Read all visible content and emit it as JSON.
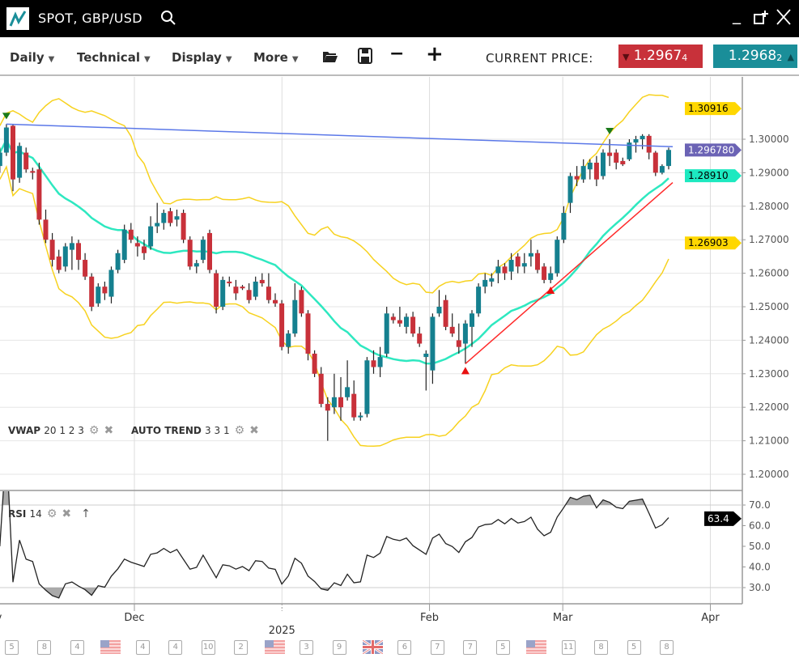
{
  "window": {
    "title": "SPOT, GBP/USD"
  },
  "toolbar": {
    "menus": [
      "Daily",
      "Technical",
      "Display",
      "More"
    ],
    "current_price_label": "CURRENT PRICE:",
    "bid": {
      "main": "1.2967",
      "pip": "4",
      "direction": "down",
      "color": "#c8313a"
    },
    "ask": {
      "main": "1.2968",
      "pip": "2",
      "direction": "up",
      "color": "#1a8e99"
    }
  },
  "indicators": {
    "vwap": {
      "name": "VWAP",
      "params": "20 1 2 3"
    },
    "autotrend": {
      "name": "AUTO TREND",
      "params": "3 3 1"
    },
    "rsi": {
      "name": "RSI",
      "params": "14"
    }
  },
  "colors": {
    "up": "#15808f",
    "down": "#c8313a",
    "band": "#f7d21f",
    "mid": "#2ee8c0",
    "resistance": "#5b78e8",
    "support": "#ff2a2a"
  },
  "chart_data": {
    "type": "candlestick",
    "price_axis": {
      "ticks": [
        "1.20000",
        "1.21000",
        "1.22000",
        "1.23000",
        "1.24000",
        "1.25000",
        "1.26000",
        "1.27000",
        "1.28000",
        "1.29000",
        "1.30000"
      ],
      "range": [
        1.195,
        1.314
      ]
    },
    "time_axis": {
      "ticks": [
        {
          "label": "Nov",
          "date": "2024-11-01"
        },
        {
          "label": "Dec",
          "date": "2024-12-01"
        },
        {
          "label": "2025",
          "date": "2025-01-01"
        },
        {
          "label": "Feb",
          "date": "2025-02-01"
        },
        {
          "label": "Mar",
          "date": "2025-03-01"
        },
        {
          "label": "Apr",
          "date": "2025-04-01"
        }
      ]
    },
    "price_tags": [
      {
        "value": "1.30916",
        "color": "#ffd700",
        "text": "#000"
      },
      {
        "value": "1.296780",
        "color": "#6b63b5",
        "text": "#fff"
      },
      {
        "value": "1.28910",
        "color": "#1de9c0",
        "text": "#000"
      },
      {
        "value": "1.26903",
        "color": "#ffd700",
        "text": "#000"
      }
    ],
    "rsi_axis": {
      "ticks": [
        "70.0",
        "60.0",
        "50.0",
        "40.0",
        "30.0"
      ],
      "overbought": 70,
      "oversold": 30
    },
    "rsi_tag": "63.4",
    "trendlines": [
      {
        "type": "resistance",
        "from": [
          "2024-11-05",
          1.3045
        ],
        "to": [
          "2025-03-26",
          1.2978
        ],
        "extend_to_right": true
      },
      {
        "type": "support",
        "from": [
          "2025-02-11",
          1.233
        ],
        "to": [
          "2025-03-26",
          1.286
        ],
        "extend_to_right": true
      }
    ],
    "markers": [
      {
        "date": "2024-11-05",
        "price": 1.3045,
        "kind": "peak"
      },
      {
        "date": "2025-03-13",
        "price": 1.3,
        "kind": "peak"
      },
      {
        "date": "2025-02-11",
        "price": 1.233,
        "kind": "trough"
      },
      {
        "date": "2025-02-28",
        "price": 1.257,
        "kind": "trough"
      }
    ],
    "candles": [
      [
        "2024-11-04",
        1.292,
        1.2975,
        1.29,
        1.296
      ],
      [
        "2024-11-05",
        1.296,
        1.3045,
        1.295,
        1.3035
      ],
      [
        "2024-11-06",
        1.304,
        1.3045,
        1.2845,
        1.288
      ],
      [
        "2024-11-07",
        1.2885,
        1.299,
        1.287,
        1.298
      ],
      [
        "2024-11-08",
        1.296,
        1.2975,
        1.29,
        1.291
      ],
      [
        "2024-11-11",
        1.2905,
        1.2915,
        1.288,
        1.29
      ],
      [
        "2024-11-12",
        1.291,
        1.293,
        1.2745,
        1.276
      ],
      [
        "2024-11-13",
        1.276,
        1.279,
        1.269,
        1.27
      ],
      [
        "2024-11-14",
        1.27,
        1.272,
        1.262,
        1.264
      ],
      [
        "2024-11-15",
        1.265,
        1.267,
        1.26,
        1.261
      ],
      [
        "2024-11-18",
        1.262,
        1.269,
        1.2605,
        1.268
      ],
      [
        "2024-11-19",
        1.267,
        1.271,
        1.261,
        1.269
      ],
      [
        "2024-11-20",
        1.269,
        1.27,
        1.261,
        1.264
      ],
      [
        "2024-11-21",
        1.264,
        1.266,
        1.258,
        1.259
      ],
      [
        "2024-11-22",
        1.259,
        1.26,
        1.2487,
        1.25
      ],
      [
        "2024-11-25",
        1.251,
        1.257,
        1.25,
        1.256
      ],
      [
        "2024-11-26",
        1.256,
        1.2575,
        1.252,
        1.254
      ],
      [
        "2024-11-27",
        1.253,
        1.262,
        1.251,
        1.261
      ],
      [
        "2024-11-28",
        1.261,
        1.267,
        1.26,
        1.266
      ],
      [
        "2024-11-29",
        1.264,
        1.2745,
        1.263,
        1.273
      ],
      [
        "2024-12-02",
        1.273,
        1.275,
        1.269,
        1.27
      ],
      [
        "2024-12-03",
        1.269,
        1.271,
        1.265,
        1.268
      ],
      [
        "2024-12-04",
        1.268,
        1.27,
        1.264,
        1.266
      ],
      [
        "2024-12-05",
        1.268,
        1.277,
        1.267,
        1.274
      ],
      [
        "2024-12-06",
        1.274,
        1.281,
        1.272,
        1.275
      ],
      [
        "2024-12-09",
        1.275,
        1.279,
        1.273,
        1.278
      ],
      [
        "2024-12-10",
        1.2785,
        1.2795,
        1.274,
        1.275
      ],
      [
        "2024-12-11",
        1.276,
        1.279,
        1.274,
        1.277
      ],
      [
        "2024-12-12",
        1.278,
        1.279,
        1.269,
        1.27
      ],
      [
        "2024-12-13",
        1.27,
        1.271,
        1.261,
        1.262
      ],
      [
        "2024-12-16",
        1.262,
        1.264,
        1.26,
        1.263
      ],
      [
        "2024-12-17",
        1.264,
        1.271,
        1.263,
        1.27
      ],
      [
        "2024-12-18",
        1.272,
        1.273,
        1.26,
        1.261
      ],
      [
        "2024-12-19",
        1.26,
        1.261,
        1.248,
        1.25
      ],
      [
        "2024-12-20",
        1.25,
        1.259,
        1.249,
        1.258
      ],
      [
        "2024-12-23",
        1.2575,
        1.259,
        1.256,
        1.257
      ],
      [
        "2024-12-24",
        1.256,
        1.258,
        1.252,
        1.254
      ],
      [
        "2024-12-25",
        1.256,
        1.2565,
        1.255,
        1.2555
      ],
      [
        "2024-12-26",
        1.255,
        1.257,
        1.251,
        1.252
      ],
      [
        "2024-12-27",
        1.253,
        1.259,
        1.252,
        1.2575
      ],
      [
        "2024-12-30",
        1.258,
        1.26,
        1.256,
        1.257
      ],
      [
        "2024-12-31",
        1.256,
        1.26,
        1.251,
        1.252
      ],
      [
        "2025-01-01",
        1.252,
        1.254,
        1.25,
        1.251
      ],
      [
        "2025-01-02",
        1.251,
        1.252,
        1.237,
        1.238
      ],
      [
        "2025-01-03",
        1.238,
        1.243,
        1.236,
        1.242
      ],
      [
        "2025-01-06",
        1.242,
        1.257,
        1.241,
        1.252
      ],
      [
        "2025-01-07",
        1.255,
        1.256,
        1.247,
        1.248
      ],
      [
        "2025-01-08",
        1.248,
        1.249,
        1.234,
        1.236
      ],
      [
        "2025-01-09",
        1.236,
        1.237,
        1.229,
        1.23
      ],
      [
        "2025-01-10",
        1.23,
        1.232,
        1.22,
        1.221
      ],
      [
        "2025-01-13",
        1.221,
        1.223,
        1.21,
        1.219
      ],
      [
        "2025-01-14",
        1.22,
        1.23,
        1.218,
        1.223
      ],
      [
        "2025-01-15",
        1.223,
        1.229,
        1.216,
        1.22
      ],
      [
        "2025-01-16",
        1.223,
        1.234,
        1.222,
        1.226
      ],
      [
        "2025-01-17",
        1.224,
        1.228,
        1.216,
        1.217
      ],
      [
        "2025-01-20",
        1.217,
        1.2185,
        1.216,
        1.2175
      ],
      [
        "2025-01-21",
        1.218,
        1.235,
        1.217,
        1.234
      ],
      [
        "2025-01-22",
        1.234,
        1.237,
        1.23,
        1.232
      ],
      [
        "2025-01-23",
        1.232,
        1.238,
        1.229,
        1.235
      ],
      [
        "2025-01-24",
        1.236,
        1.25,
        1.235,
        1.248
      ],
      [
        "2025-01-27",
        1.247,
        1.248,
        1.245,
        1.246
      ],
      [
        "2025-01-28",
        1.246,
        1.25,
        1.244,
        1.245
      ],
      [
        "2025-01-29",
        1.244,
        1.248,
        1.242,
        1.247
      ],
      [
        "2025-01-30",
        1.247,
        1.2485,
        1.241,
        1.242
      ],
      [
        "2025-01-31",
        1.242,
        1.244,
        1.238,
        1.239
      ],
      [
        "2025-02-03",
        1.235,
        1.237,
        1.225,
        1.236
      ],
      [
        "2025-02-04",
        1.231,
        1.248,
        1.227,
        1.247
      ],
      [
        "2025-02-05",
        1.248,
        1.255,
        1.247,
        1.25
      ],
      [
        "2025-02-06",
        1.252,
        1.2535,
        1.243,
        1.244
      ],
      [
        "2025-02-07",
        1.244,
        1.248,
        1.241,
        1.242
      ],
      [
        "2025-02-10",
        1.24,
        1.245,
        1.236,
        1.238
      ],
      [
        "2025-02-11",
        1.239,
        1.246,
        1.233,
        1.245
      ],
      [
        "2025-02-12",
        1.244,
        1.249,
        1.238,
        1.248
      ],
      [
        "2025-02-13",
        1.248,
        1.257,
        1.247,
        1.256
      ],
      [
        "2025-02-14",
        1.256,
        1.26,
        1.254,
        1.258
      ],
      [
        "2025-02-17",
        1.2575,
        1.26,
        1.256,
        1.2585
      ],
      [
        "2025-02-18",
        1.26,
        1.264,
        1.257,
        1.262
      ],
      [
        "2025-02-19",
        1.262,
        1.263,
        1.258,
        1.26
      ],
      [
        "2025-02-20",
        1.2605,
        1.266,
        1.258,
        1.264
      ],
      [
        "2025-02-21",
        1.265,
        1.266,
        1.26,
        1.262
      ],
      [
        "2025-02-24",
        1.262,
        1.266,
        1.26,
        1.263
      ],
      [
        "2025-02-25",
        1.265,
        1.27,
        1.262,
        1.266
      ],
      [
        "2025-02-26",
        1.266,
        1.267,
        1.26,
        1.261
      ],
      [
        "2025-02-27",
        1.262,
        1.263,
        1.257,
        1.258
      ],
      [
        "2025-02-28",
        1.258,
        1.262,
        1.257,
        1.26
      ],
      [
        "2025-03-03",
        1.26,
        1.271,
        1.259,
        1.27
      ],
      [
        "2025-03-04",
        1.27,
        1.28,
        1.269,
        1.278
      ],
      [
        "2025-03-05",
        1.281,
        1.29,
        1.278,
        1.289
      ],
      [
        "2025-03-06",
        1.289,
        1.292,
        1.286,
        1.288
      ],
      [
        "2025-03-07",
        1.288,
        1.294,
        1.287,
        1.292
      ],
      [
        "2025-03-10",
        1.291,
        1.294,
        1.288,
        1.293
      ],
      [
        "2025-03-11",
        1.293,
        1.295,
        1.286,
        1.288
      ],
      [
        "2025-03-12",
        1.289,
        1.297,
        1.288,
        1.296
      ],
      [
        "2025-03-13",
        1.296,
        1.3,
        1.292,
        1.295
      ],
      [
        "2025-03-14",
        1.296,
        1.297,
        1.291,
        1.293
      ],
      [
        "2025-03-17",
        1.2935,
        1.2945,
        1.292,
        1.2925
      ],
      [
        "2025-03-18",
        1.294,
        1.3,
        1.2935,
        1.299
      ],
      [
        "2025-03-19",
        1.299,
        1.301,
        1.296,
        1.3
      ],
      [
        "2025-03-20",
        1.3,
        1.3015,
        1.297,
        1.301
      ],
      [
        "2025-03-21",
        1.301,
        1.3015,
        1.294,
        1.296
      ],
      [
        "2025-03-24",
        1.296,
        1.2965,
        1.289,
        1.29
      ],
      [
        "2025-03-25",
        1.29,
        1.2925,
        1.2895,
        1.292
      ],
      [
        "2025-03-26",
        1.292,
        1.2975,
        1.291,
        1.2968
      ]
    ]
  },
  "calendar_events": [
    {
      "type": "day",
      "label": "5"
    },
    {
      "type": "day",
      "label": "8"
    },
    {
      "type": "day",
      "label": "4"
    },
    {
      "type": "flag",
      "country": "US"
    },
    {
      "type": "day",
      "label": "4"
    },
    {
      "type": "day",
      "label": "4"
    },
    {
      "type": "day",
      "label": "10"
    },
    {
      "type": "day",
      "label": "2"
    },
    {
      "type": "flag",
      "country": "US"
    },
    {
      "type": "day",
      "label": "3"
    },
    {
      "type": "day",
      "label": "9"
    },
    {
      "type": "flag",
      "country": "UK"
    },
    {
      "type": "day",
      "label": "6"
    },
    {
      "type": "day",
      "label": "7"
    },
    {
      "type": "day",
      "label": "7"
    },
    {
      "type": "day",
      "label": "5"
    },
    {
      "type": "flag",
      "country": "US"
    },
    {
      "type": "day",
      "label": "11"
    },
    {
      "type": "day",
      "label": "8"
    },
    {
      "type": "day",
      "label": "5"
    },
    {
      "type": "day",
      "label": "8"
    }
  ]
}
